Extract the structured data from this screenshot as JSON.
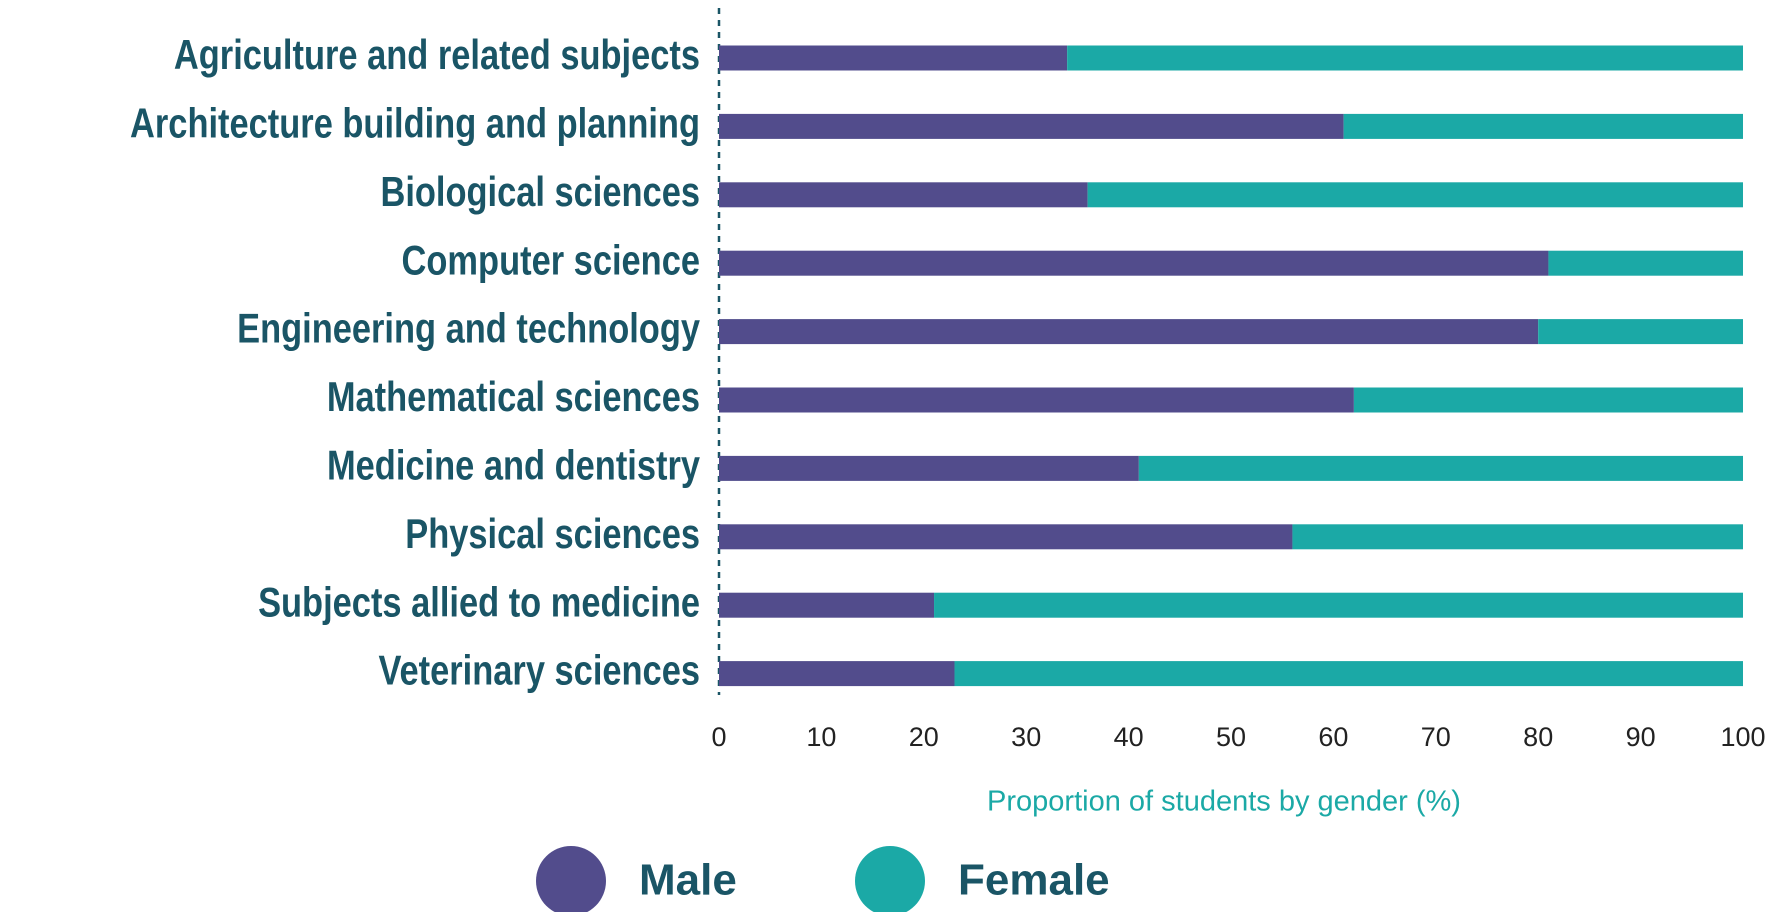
{
  "chart_data": {
    "type": "stacked_bar_horizontal",
    "categories": [
      "Agriculture and related subjects",
      "Architecture building and planning",
      "Biological sciences",
      "Computer science",
      "Engineering and technology",
      "Mathematical sciences",
      "Medicine and dentistry",
      "Physical sciences",
      "Subjects allied to medicine",
      "Veterinary sciences"
    ],
    "series": [
      {
        "name": "Male",
        "color": "#524c8c",
        "values": [
          34,
          61,
          36,
          81,
          80,
          62,
          41,
          56,
          21,
          23
        ]
      },
      {
        "name": "Female",
        "color": "#1ba9a6",
        "values": [
          66,
          39,
          64,
          19,
          20,
          38,
          59,
          44,
          79,
          77
        ]
      }
    ],
    "xlabel": "Proportion of students by gender (%)",
    "xlim": [
      0,
      100
    ],
    "xticks": [
      0,
      10,
      20,
      30,
      40,
      50,
      60,
      70,
      80,
      90,
      100
    ]
  }
}
